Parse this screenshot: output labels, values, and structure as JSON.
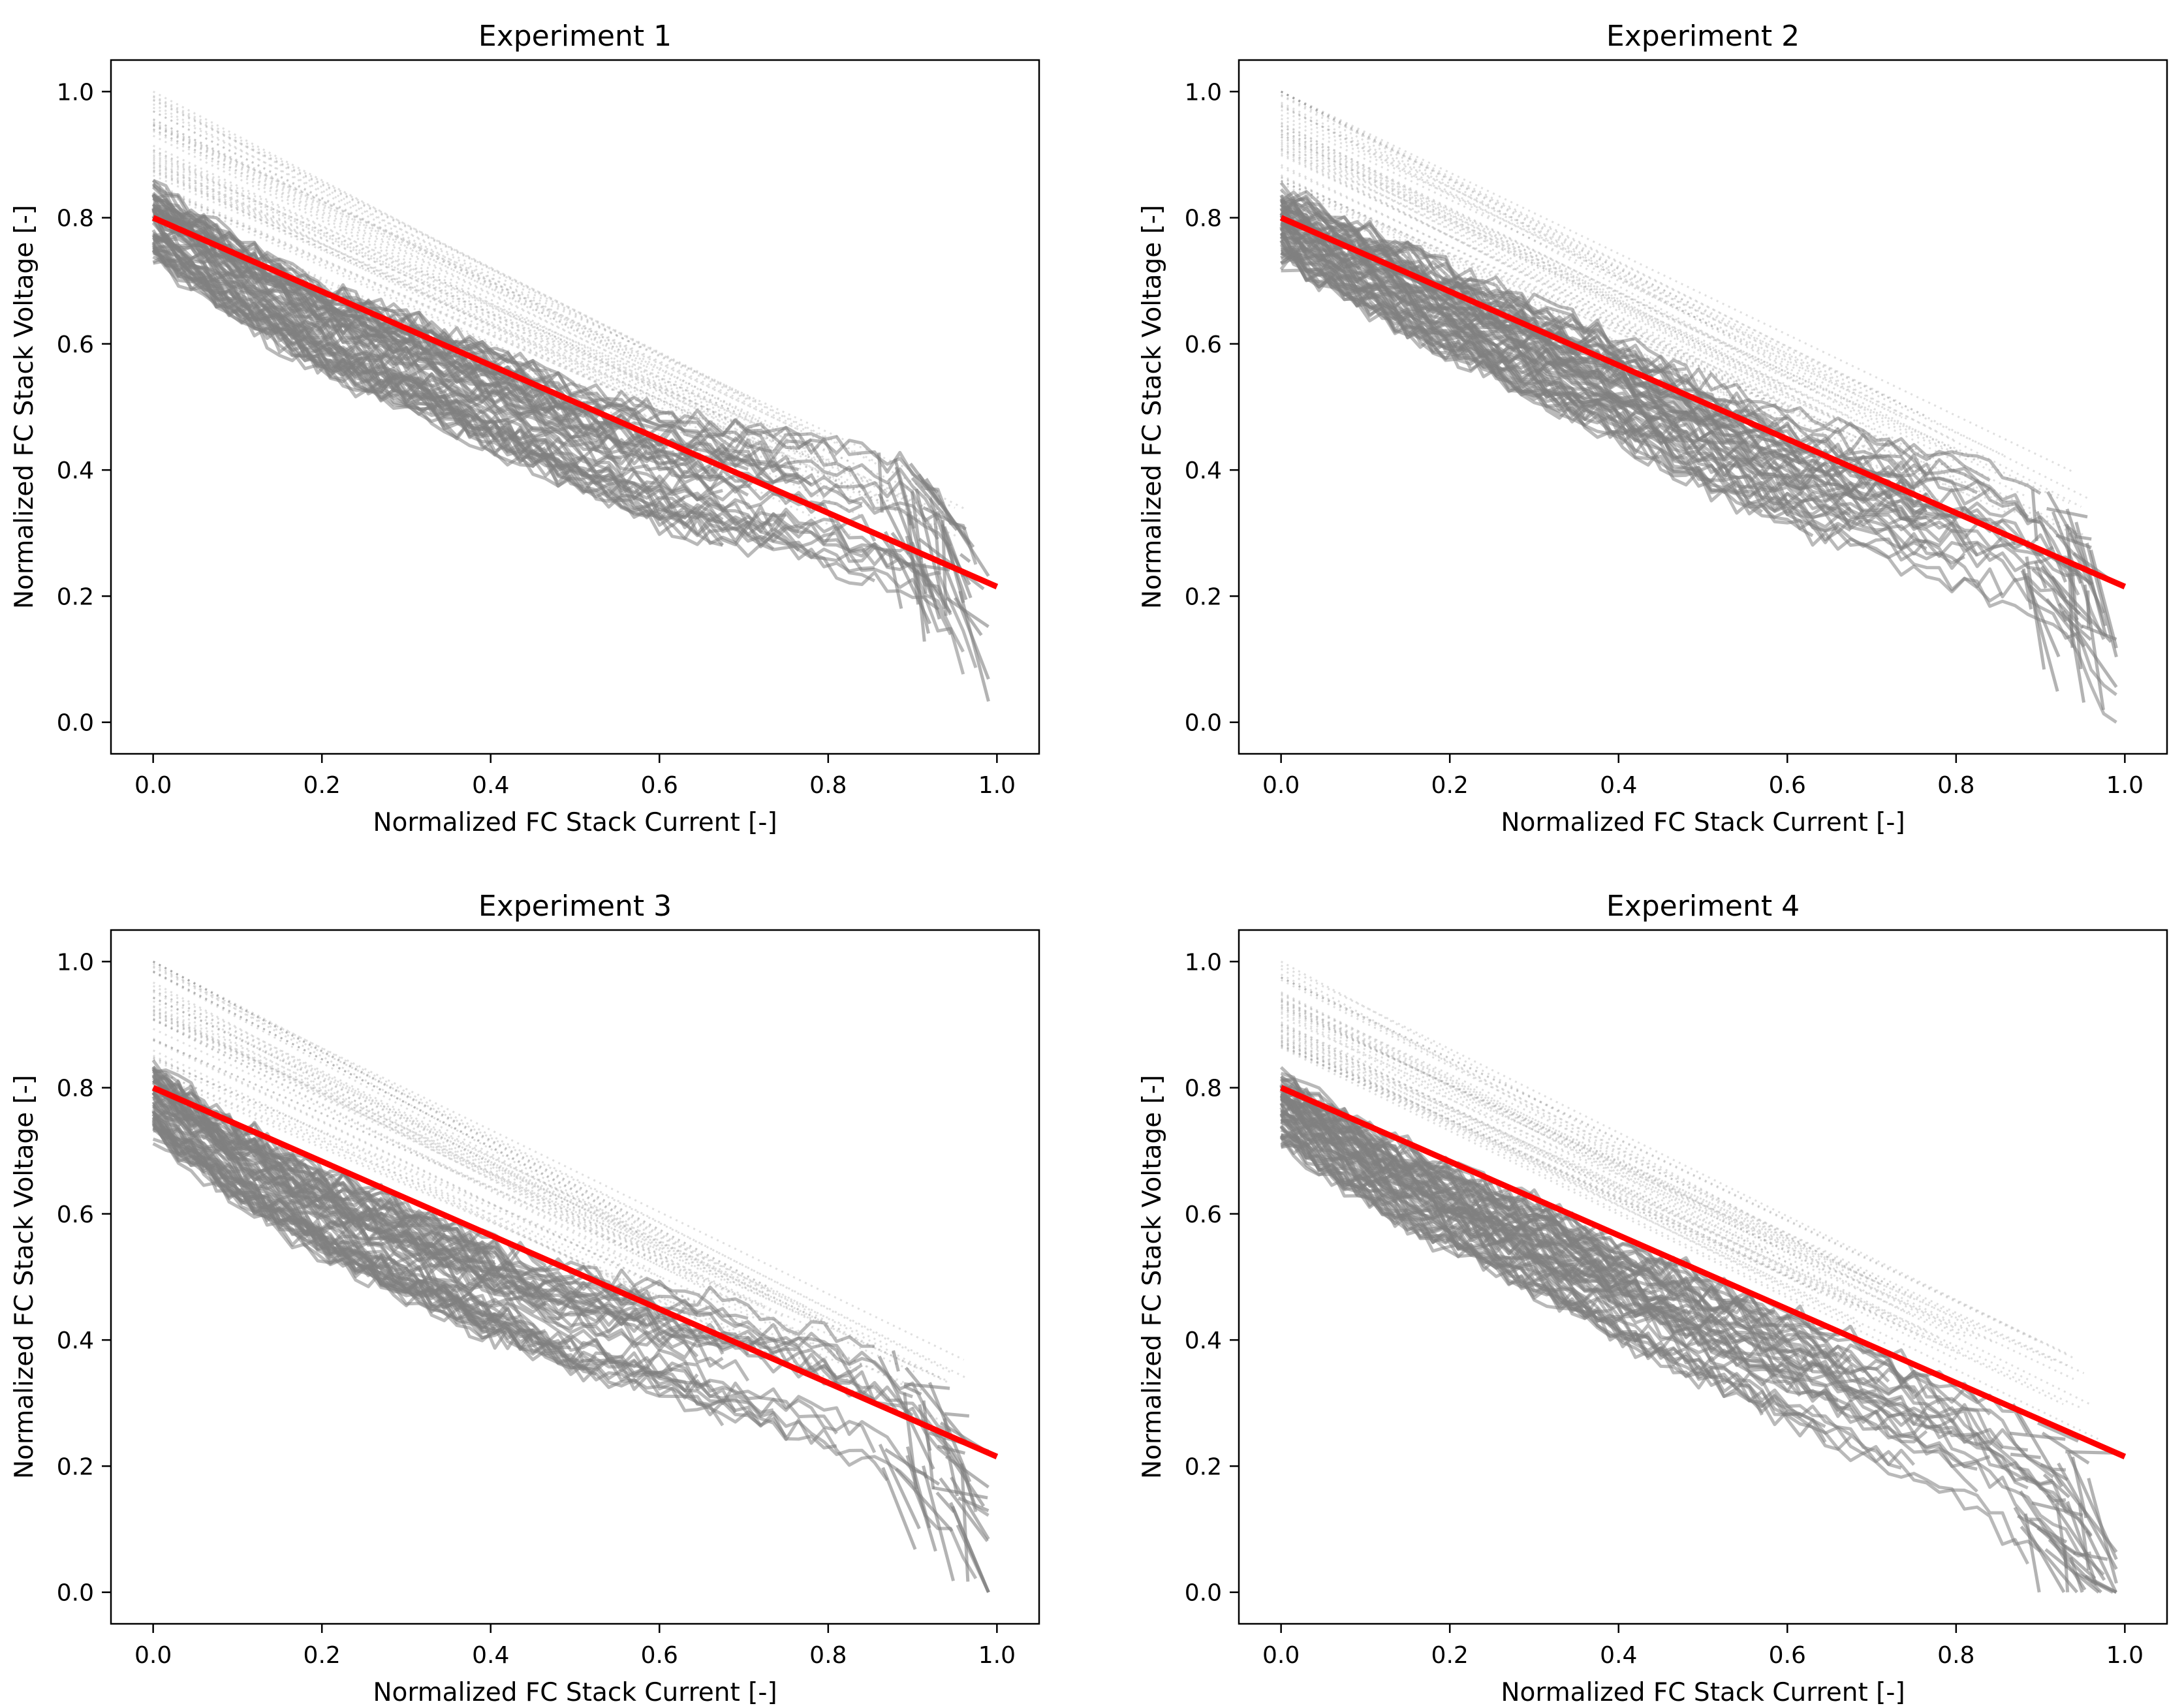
{
  "figure": {
    "background": "#ffffff"
  },
  "style": {
    "fit_line_color": "#ff0000",
    "measurement_color": "#808080",
    "frame_color": "#000000"
  },
  "chart_data": [
    {
      "type": "line",
      "title": "Experiment 1",
      "xlabel": "Normalized FC Stack Current [-]",
      "ylabel": "Normalized FC Stack Voltage [-]",
      "xlim": [
        -0.05,
        1.05
      ],
      "ylim": [
        -0.05,
        1.05
      ],
      "xticks": [
        "0.0",
        "0.2",
        "0.4",
        "0.6",
        "0.8",
        "1.0"
      ],
      "yticks": [
        "0.0",
        "0.2",
        "0.4",
        "0.6",
        "0.8",
        "1.0"
      ],
      "grid": false,
      "legend": "none",
      "series": [
        {
          "role": "fit",
          "color": "#ff0000",
          "x": [
            0.0,
            1.0
          ],
          "y": [
            0.8,
            0.215
          ]
        },
        {
          "role": "measurement",
          "color": "#808080",
          "x": [
            0.0,
            0.1,
            0.2,
            0.3,
            0.4,
            0.5,
            0.6,
            0.7,
            0.8,
            0.9,
            0.95,
            0.98
          ],
          "y": [
            0.79,
            0.7,
            0.62,
            0.57,
            0.51,
            0.45,
            0.4,
            0.37,
            0.34,
            0.3,
            0.22,
            0.12
          ]
        }
      ]
    },
    {
      "type": "line",
      "title": "Experiment 2",
      "xlabel": "Normalized FC Stack Current [-]",
      "ylabel": "Normalized FC Stack Voltage [-]",
      "xlim": [
        -0.05,
        1.05
      ],
      "ylim": [
        -0.05,
        1.05
      ],
      "xticks": [
        "0.0",
        "0.2",
        "0.4",
        "0.6",
        "0.8",
        "1.0"
      ],
      "yticks": [
        "0.0",
        "0.2",
        "0.4",
        "0.6",
        "0.8",
        "1.0"
      ],
      "grid": false,
      "legend": "none",
      "series": [
        {
          "role": "fit",
          "color": "#ff0000",
          "x": [
            0.0,
            1.0
          ],
          "y": [
            0.8,
            0.215
          ]
        },
        {
          "role": "measurement",
          "color": "#808080",
          "x": [
            0.0,
            0.1,
            0.2,
            0.3,
            0.4,
            0.5,
            0.6,
            0.7,
            0.8,
            0.9,
            0.95,
            0.98
          ],
          "y": [
            0.79,
            0.72,
            0.65,
            0.59,
            0.53,
            0.46,
            0.4,
            0.36,
            0.32,
            0.27,
            0.2,
            0.12
          ]
        }
      ]
    },
    {
      "type": "line",
      "title": "Experiment 3",
      "xlabel": "Normalized FC Stack Current [-]",
      "ylabel": "Normalized FC Stack Voltage [-]",
      "xlim": [
        -0.05,
        1.05
      ],
      "ylim": [
        -0.05,
        1.05
      ],
      "xticks": [
        "0.0",
        "0.2",
        "0.4",
        "0.6",
        "0.8",
        "1.0"
      ],
      "yticks": [
        "0.0",
        "0.2",
        "0.4",
        "0.6",
        "0.8",
        "1.0"
      ],
      "grid": false,
      "legend": "none",
      "series": [
        {
          "role": "fit",
          "color": "#ff0000",
          "x": [
            0.0,
            1.0
          ],
          "y": [
            0.8,
            0.215
          ]
        },
        {
          "role": "measurement",
          "color": "#808080",
          "x": [
            0.0,
            0.1,
            0.2,
            0.3,
            0.4,
            0.5,
            0.6,
            0.7,
            0.8,
            0.9,
            0.95,
            0.98
          ],
          "y": [
            0.78,
            0.68,
            0.6,
            0.54,
            0.48,
            0.43,
            0.4,
            0.36,
            0.32,
            0.25,
            0.17,
            0.08
          ]
        }
      ]
    },
    {
      "type": "line",
      "title": "Experiment 4",
      "xlabel": "Normalized FC Stack Current [-]",
      "ylabel": "Normalized FC Stack Voltage [-]",
      "xlim": [
        -0.05,
        1.05
      ],
      "ylim": [
        -0.05,
        1.05
      ],
      "xticks": [
        "0.0",
        "0.2",
        "0.4",
        "0.6",
        "0.8",
        "1.0"
      ],
      "yticks": [
        "0.0",
        "0.2",
        "0.4",
        "0.6",
        "0.8",
        "1.0"
      ],
      "grid": false,
      "legend": "none",
      "series": [
        {
          "role": "fit",
          "color": "#ff0000",
          "x": [
            0.0,
            1.0
          ],
          "y": [
            0.8,
            0.215
          ]
        },
        {
          "role": "measurement",
          "color": "#808080",
          "x": [
            0.0,
            0.1,
            0.2,
            0.3,
            0.4,
            0.5,
            0.6,
            0.7,
            0.8,
            0.9,
            0.95,
            0.98
          ],
          "y": [
            0.77,
            0.68,
            0.61,
            0.55,
            0.48,
            0.42,
            0.36,
            0.3,
            0.24,
            0.15,
            0.09,
            0.04
          ]
        }
      ]
    }
  ]
}
